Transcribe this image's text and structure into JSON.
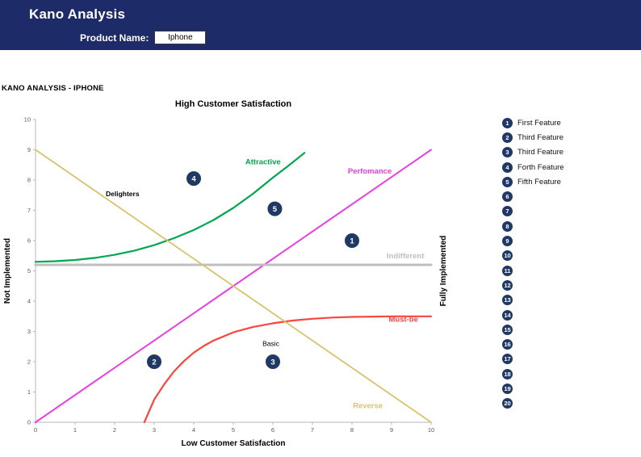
{
  "header": {
    "title": "Kano Analysis",
    "product_label": "Product Name:",
    "product_value": "Iphone"
  },
  "page": {
    "section_title": "KANO ANALYSIS - IPHONE"
  },
  "chart_data": {
    "type": "line",
    "title": "High Customer Satisfaction",
    "xlabel": "Low Customer Satisfaction",
    "ylabel_left": "Not Implemented",
    "ylabel_right": "Fully Implemented",
    "xlim": [
      0,
      10
    ],
    "ylim": [
      0,
      10
    ],
    "x_ticks": [
      0,
      1,
      2,
      3,
      4,
      5,
      6,
      7,
      8,
      9,
      10
    ],
    "y_ticks": [
      0,
      1,
      2,
      3,
      4,
      5,
      6,
      7,
      8,
      9,
      10
    ],
    "grid": false,
    "legend_position": "labels-on-chart",
    "marker_color": "#1F3864",
    "axis_color": "#B7B7B7",
    "tick_label_color": "#595959",
    "series": [
      {
        "id": "attractive",
        "name": "Attractive",
        "color": "#00A651",
        "width": 2.2,
        "points": [
          [
            0,
            5.3
          ],
          [
            0.5,
            5.32
          ],
          [
            1,
            5.36
          ],
          [
            1.5,
            5.43
          ],
          [
            2,
            5.53
          ],
          [
            2.5,
            5.67
          ],
          [
            3,
            5.85
          ],
          [
            3.5,
            6.08
          ],
          [
            4,
            6.35
          ],
          [
            4.5,
            6.68
          ],
          [
            5,
            7.08
          ],
          [
            5.5,
            7.55
          ],
          [
            6,
            8.08
          ],
          [
            6.4,
            8.48
          ],
          [
            6.8,
            8.9
          ]
        ],
        "label": {
          "x": 5.75,
          "y": 8.6,
          "anchor": "middle"
        }
      },
      {
        "id": "performance",
        "name": "Perfomance",
        "color": "#E93FE0",
        "width": 2,
        "points": [
          [
            0,
            0
          ],
          [
            10,
            9
          ]
        ],
        "label": {
          "x": 8.45,
          "y": 8.3,
          "anchor": "middle"
        }
      },
      {
        "id": "indifferent",
        "name": "Indifferent",
        "color": "#BFBFBF",
        "width": 3,
        "points": [
          [
            0,
            5.2
          ],
          [
            10,
            5.2
          ]
        ],
        "label": {
          "x": 9.35,
          "y": 5.5,
          "anchor": "middle"
        }
      },
      {
        "id": "must-be",
        "name": "Must-be",
        "color": "#F8463F",
        "width": 2.2,
        "points": [
          [
            2.75,
            0
          ],
          [
            3,
            0.75
          ],
          [
            3.25,
            1.25
          ],
          [
            3.5,
            1.68
          ],
          [
            3.75,
            2.02
          ],
          [
            4,
            2.3
          ],
          [
            4.25,
            2.52
          ],
          [
            4.5,
            2.7
          ],
          [
            5,
            2.97
          ],
          [
            5.5,
            3.15
          ],
          [
            6,
            3.27
          ],
          [
            6.5,
            3.36
          ],
          [
            7,
            3.42
          ],
          [
            7.5,
            3.46
          ],
          [
            8,
            3.48
          ],
          [
            9,
            3.5
          ],
          [
            10,
            3.5
          ]
        ],
        "label": {
          "x": 9.3,
          "y": 3.4,
          "anchor": "middle"
        }
      },
      {
        "id": "reverse",
        "name": "Reverse",
        "color": "#D6C36E",
        "width": 1.8,
        "points": [
          [
            0,
            9
          ],
          [
            10,
            0
          ]
        ],
        "label": {
          "x": 8.4,
          "y": 0.55,
          "anchor": "middle"
        }
      }
    ],
    "annotations": [
      {
        "text": "Delighters",
        "x": 2.2,
        "y": 7.55,
        "color": "#000000",
        "bold": true
      },
      {
        "text": "Basic",
        "x": 5.95,
        "y": 2.6,
        "color": "#000000",
        "bold": false
      }
    ],
    "markers": [
      {
        "n": "1",
        "x": 8.0,
        "y": 6.0
      },
      {
        "n": "2",
        "x": 3.0,
        "y": 2.0
      },
      {
        "n": "3",
        "x": 6.0,
        "y": 2.0
      },
      {
        "n": "4",
        "x": 4.0,
        "y": 8.05
      },
      {
        "n": "5",
        "x": 6.05,
        "y": 7.05
      }
    ]
  },
  "legend": {
    "items": [
      {
        "n": "1",
        "label": "First Feature"
      },
      {
        "n": "2",
        "label": "Third Feature"
      },
      {
        "n": "3",
        "label": "Third Feature"
      },
      {
        "n": "4",
        "label": "Forth Feature"
      },
      {
        "n": "5",
        "label": "Fifth Feature"
      },
      {
        "n": "6",
        "label": ""
      },
      {
        "n": "7",
        "label": ""
      },
      {
        "n": "8",
        "label": ""
      },
      {
        "n": "9",
        "label": ""
      },
      {
        "n": "10",
        "label": ""
      },
      {
        "n": "11",
        "label": ""
      },
      {
        "n": "12",
        "label": ""
      },
      {
        "n": "13",
        "label": ""
      },
      {
        "n": "14",
        "label": ""
      },
      {
        "n": "15",
        "label": ""
      },
      {
        "n": "16",
        "label": ""
      },
      {
        "n": "17",
        "label": ""
      },
      {
        "n": "18",
        "label": ""
      },
      {
        "n": "19",
        "label": ""
      },
      {
        "n": "20",
        "label": ""
      }
    ]
  },
  "colors": {
    "header_bg": "#1D2C68",
    "legend_circle": "#1F3864"
  }
}
